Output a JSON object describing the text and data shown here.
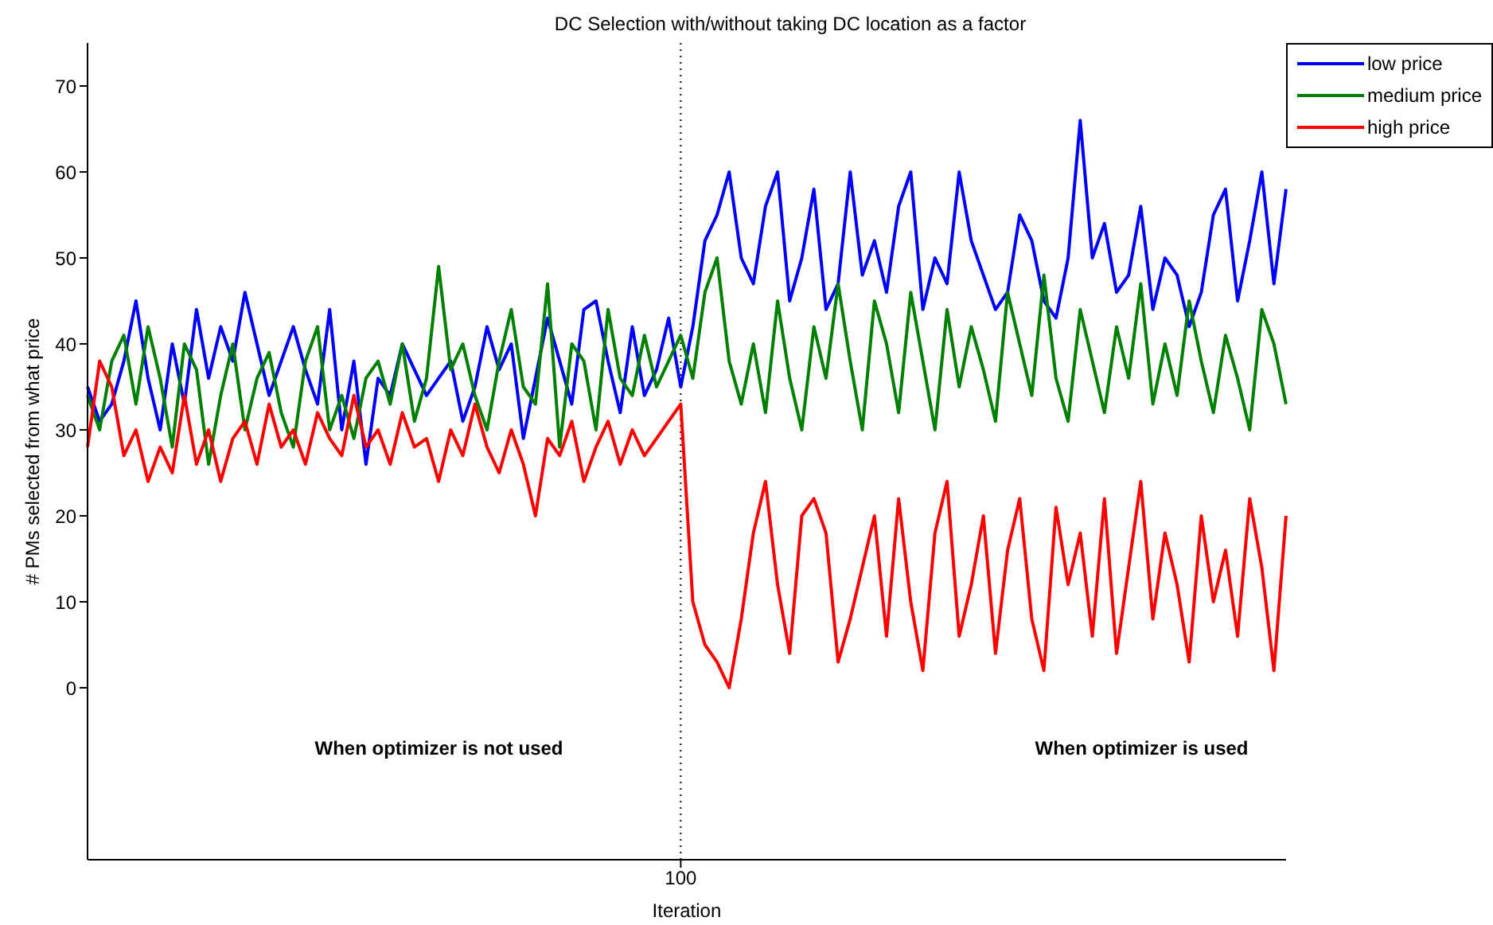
{
  "chart_data": {
    "type": "line",
    "title": "DC Selection with/without taking DC location as a factor",
    "xlabel": "Iteration",
    "ylabel": "# PMs selected from what price",
    "categories": [
      null,
      null,
      null,
      null,
      null,
      null,
      null,
      null,
      null,
      null,
      null,
      null,
      null,
      null,
      null,
      null,
      null,
      null,
      null,
      null,
      null,
      null,
      null,
      null,
      null,
      null,
      null,
      null,
      null,
      null,
      null,
      null,
      null,
      null,
      null,
      null,
      null,
      null,
      null,
      null,
      null,
      null,
      null,
      null,
      null,
      null,
      null,
      null,
      null,
      "100",
      null,
      null,
      null,
      null,
      null,
      null,
      null,
      null,
      null,
      null,
      null,
      null,
      null,
      null,
      null,
      null,
      null,
      null,
      null,
      null,
      null,
      null,
      null,
      null,
      null,
      null,
      null,
      null,
      null,
      null,
      null,
      null,
      null,
      null,
      null,
      null,
      null,
      null,
      null,
      null,
      null,
      null,
      null,
      null,
      null,
      null,
      null,
      null,
      null,
      null
    ],
    "series": [
      {
        "name": "low price",
        "color": "#0000ff",
        "values": [
          35,
          31,
          33,
          38,
          45,
          36,
          30,
          40,
          33,
          44,
          36,
          42,
          38,
          46,
          40,
          34,
          38,
          42,
          37,
          33,
          44,
          30,
          38,
          26,
          36,
          34,
          40,
          37,
          34,
          36,
          38,
          31,
          35,
          42,
          37,
          40,
          29,
          36,
          43,
          38,
          33,
          44,
          45,
          38,
          32,
          42,
          34,
          37,
          43,
          35,
          42,
          52,
          55,
          60,
          50,
          47,
          56,
          60,
          45,
          50,
          58,
          44,
          47,
          60,
          48,
          52,
          46,
          56,
          60,
          44,
          50,
          47,
          60,
          52,
          48,
          44,
          46,
          55,
          52,
          45,
          43,
          50,
          66,
          50,
          54,
          46,
          48,
          56,
          44,
          50,
          48,
          42,
          46,
          55,
          58,
          45,
          52,
          60,
          47,
          58
        ]
      },
      {
        "name": "medium price",
        "color": "#008000",
        "values": [
          34,
          30,
          38,
          41,
          33,
          42,
          36,
          28,
          40,
          37,
          26,
          34,
          40,
          30,
          36,
          39,
          32,
          28,
          38,
          42,
          30,
          34,
          29,
          36,
          38,
          33,
          40,
          31,
          36,
          49,
          37,
          40,
          34,
          30,
          38,
          44,
          35,
          33,
          47,
          28,
          40,
          38,
          30,
          44,
          36,
          34,
          41,
          35,
          38,
          41,
          36,
          46,
          50,
          38,
          33,
          40,
          32,
          45,
          36,
          30,
          42,
          36,
          47,
          38,
          30,
          45,
          40,
          32,
          46,
          38,
          30,
          44,
          35,
          42,
          37,
          31,
          46,
          40,
          34,
          48,
          36,
          31,
          44,
          38,
          32,
          42,
          36,
          47,
          33,
          40,
          34,
          45,
          38,
          32,
          41,
          36,
          30,
          44,
          40,
          33
        ]
      },
      {
        "name": "high price",
        "color": "#ff0000",
        "values": [
          28,
          38,
          35,
          27,
          30,
          24,
          28,
          25,
          34,
          26,
          30,
          24,
          29,
          31,
          26,
          33,
          28,
          30,
          26,
          32,
          29,
          27,
          34,
          28,
          30,
          26,
          32,
          28,
          29,
          24,
          30,
          27,
          33,
          28,
          25,
          30,
          26,
          20,
          29,
          27,
          31,
          24,
          28,
          31,
          26,
          30,
          27,
          29,
          31,
          33,
          10,
          5,
          3,
          0,
          8,
          18,
          24,
          12,
          4,
          20,
          22,
          18,
          3,
          8,
          14,
          20,
          6,
          22,
          10,
          2,
          18,
          24,
          6,
          12,
          20,
          4,
          16,
          22,
          8,
          2,
          21,
          12,
          18,
          6,
          22,
          4,
          14,
          24,
          8,
          18,
          12,
          3,
          20,
          10,
          16,
          6,
          22,
          14,
          2,
          20
        ]
      }
    ],
    "ylim": [
      -20,
      75
    ],
    "yticks": [
      0,
      10,
      20,
      30,
      40,
      50,
      60,
      70
    ],
    "ref_lines": [
      {
        "axis": "x",
        "value": "100",
        "color": "#000000",
        "line_style": "dotted"
      }
    ],
    "annotations": [
      "When optimizer is not used",
      "When optimizer is used"
    ],
    "legend": "top right",
    "grid": false,
    "marker": "none",
    "line_style": "solid"
  }
}
